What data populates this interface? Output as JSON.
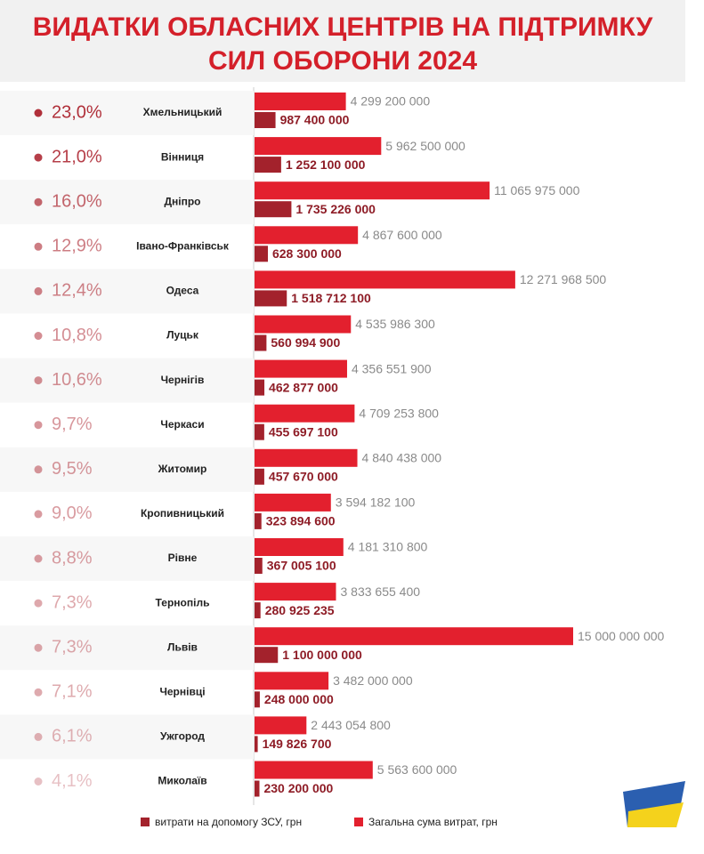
{
  "chart_data": {
    "type": "bar",
    "title": [
      "ВИДАТКИ ОБЛАСНИХ ЦЕНТРІВ НА ПІДТРИМКУ",
      "СИЛ ОБОРОНИ 2024"
    ],
    "categories": [
      "Хмельницький",
      "Вінниця",
      "Дніпро",
      "Івано-Франківськ",
      "Одеса",
      "Луцьк",
      "Чернігів",
      "Черкаси",
      "Житомир",
      "Кропивницький",
      "Рівне",
      "Тернопіль",
      "Львів",
      "Чернівці",
      "Ужгород",
      "Миколаїв"
    ],
    "percent": {
      "color": "#b0303a",
      "values": [
        23.0,
        21.0,
        16.0,
        12.9,
        12.4,
        10.8,
        10.6,
        9.7,
        9.5,
        9.0,
        8.8,
        7.3,
        7.3,
        7.1,
        6.1,
        4.1
      ],
      "value_labels": [
        "23,0%",
        "21,0%",
        "16,0%",
        "12,9%",
        "12,4%",
        "10,8%",
        "10,6%",
        "9,7%",
        "9,5%",
        "9,0%",
        "8,8%",
        "7,3%",
        "7,3%",
        "7,1%",
        "6,1%",
        "4,1%"
      ]
    },
    "series": [
      {
        "name": "витрати на допомогу ЗСУ, грн",
        "color": "#a3222c",
        "values": [
          987400000,
          1252100000,
          1735226000,
          628300000,
          1518712100,
          560994900,
          462877000,
          455697100,
          457670000,
          323894600,
          367005100,
          280925235,
          1100000000,
          248000000,
          149826700,
          230200000
        ],
        "value_labels": [
          "987 400 000",
          "1 252 100 000",
          "1 735 226 000",
          "628 300 000",
          "1 518 712 100",
          "560 994 900",
          "462 877 000",
          "455 697 100",
          "457 670 000",
          "323 894 600",
          "367 005 100",
          "280 925 235",
          "1 100 000 000",
          "248 000 000",
          "149 826 700",
          "230 200 000"
        ]
      },
      {
        "name": "Загальна сума витрат, грн",
        "color": "#e3202e",
        "values": [
          4299200000,
          5962500000,
          11065975000,
          4867600000,
          12271968500,
          4535986300,
          4356551900,
          4709253800,
          4840438000,
          3594182100,
          4181310800,
          3833655400,
          15000000000,
          3482000000,
          2443054800,
          5563600000
        ],
        "value_labels": [
          "4 299 200 000",
          "5 962 500 000",
          "11 065 975 000",
          "4 867 600 000",
          "12 271 968 500",
          "4 535 986 300",
          "4 356 551 900",
          "4 709 253 800",
          "4 840 438 000",
          "3 594 182 100",
          "4 181 310 800",
          "3 833 655 400",
          "15 000 000 000",
          "3 482 000 000",
          "2 443 054 800",
          "5 563 600 000"
        ]
      }
    ]
  }
}
